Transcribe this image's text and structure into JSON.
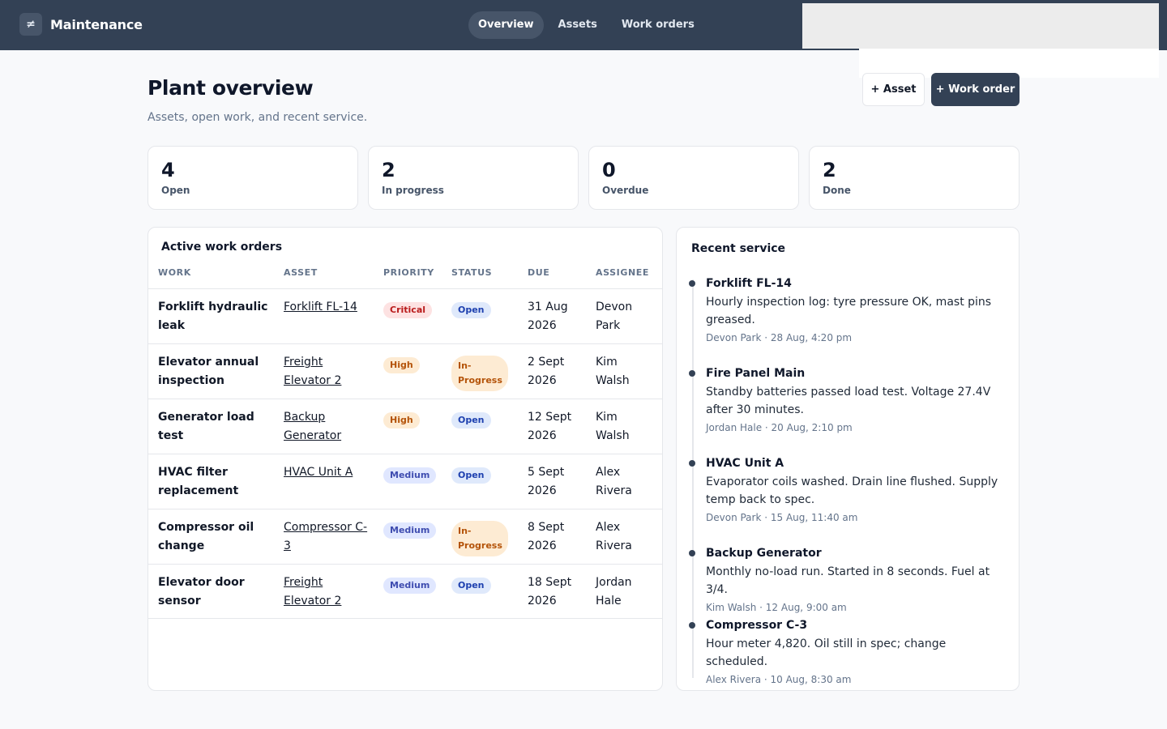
{
  "app": {
    "name": "Maintenance",
    "logo_glyph": "≠"
  },
  "nav": {
    "tabs": [
      {
        "label": "Overview"
      },
      {
        "label": "Assets"
      },
      {
        "label": "Work orders"
      }
    ]
  },
  "header": {
    "title": "Plant overview",
    "subtitle": "Assets, open work, and recent service.",
    "add_asset_label": "+ Asset",
    "add_work_order_label": "+ Work order"
  },
  "stats": [
    {
      "value": "4",
      "label": "Open"
    },
    {
      "value": "2",
      "label": "In progress"
    },
    {
      "value": "0",
      "label": "Overdue"
    },
    {
      "value": "2",
      "label": "Done"
    }
  ],
  "work_orders": {
    "title": "Active work orders",
    "columns": {
      "work": "WORK",
      "asset": "ASSET",
      "priority": "PRIORITY",
      "status": "STATUS",
      "due": "DUE",
      "assignee": "ASSIGNEE"
    },
    "rows": [
      {
        "work": "Forklift hydraulic leak",
        "asset": "Forklift FL-14",
        "priority": "Critical",
        "status": "Open",
        "due": "31 Aug 2026",
        "assignee": "Devon Park"
      },
      {
        "work": "Elevator annual inspection",
        "asset": "Freight Elevator 2",
        "priority": "High",
        "status": "In-Progress",
        "due": "2 Sept 2026",
        "assignee": "Kim Walsh"
      },
      {
        "work": "Generator load test",
        "asset": "Backup Generator",
        "priority": "High",
        "status": "Open",
        "due": "12 Sept 2026",
        "assignee": "Kim Walsh"
      },
      {
        "work": "HVAC filter replacement",
        "asset": "HVAC Unit A",
        "priority": "Medium",
        "status": "Open",
        "due": "5 Sept 2026",
        "assignee": "Alex Rivera"
      },
      {
        "work": "Compressor oil change",
        "asset": "Compressor C-3",
        "priority": "Medium",
        "status": "In-Progress",
        "due": "8 Sept 2026",
        "assignee": "Alex Rivera"
      },
      {
        "work": "Elevator door sensor",
        "asset": "Freight Elevator 2",
        "priority": "Medium",
        "status": "Open",
        "due": "18 Sept 2026",
        "assignee": "Jordan Hale"
      }
    ]
  },
  "recent_service": {
    "title": "Recent service",
    "items": [
      {
        "asset": "Forklift FL-14",
        "note": "Hourly inspection log: tyre pressure OK, mast pins greased.",
        "meta": "Devon Park · 28 Aug, 4:20 pm"
      },
      {
        "asset": "Fire Panel Main",
        "note": "Standby batteries passed load test. Voltage 27.4V after 30 minutes.",
        "meta": "Jordan Hale · 20 Aug, 2:10 pm"
      },
      {
        "asset": "HVAC Unit A",
        "note": "Evaporator coils washed. Drain line flushed. Supply temp back to spec.",
        "meta": "Devon Park · 15 Aug, 11:40 am"
      },
      {
        "asset": "Backup Generator",
        "note": "Monthly no-load run. Started in 8 seconds. Fuel at 3/4.",
        "meta": "Kim Walsh · 12 Aug, 9:00 am"
      },
      {
        "asset": "Compressor C-3",
        "note": "Hour meter 4,820. Oil still in spec; change scheduled.",
        "meta": "Alex Rivera · 10 Aug, 8:30 am"
      }
    ]
  },
  "colors": {
    "topbar": "#334155",
    "critical": "#b91c1c",
    "high": "#b45309",
    "medium": "#3f4db0",
    "open": "#1e40af"
  }
}
